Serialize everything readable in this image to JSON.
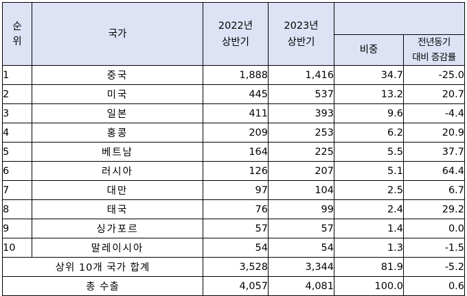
{
  "headers": {
    "rank": [
      "순",
      "위"
    ],
    "country": "국가",
    "y2022": [
      "2022년",
      "상반기"
    ],
    "y2023": [
      "2023년",
      "상반기"
    ],
    "share": "비중",
    "yoy": [
      "전년동기",
      "대비 증감률"
    ]
  },
  "rows": [
    {
      "rank": "1",
      "country": "중국",
      "y2022": "1,888",
      "y2023": "1,416",
      "share": "34.7",
      "yoy": "-25.0"
    },
    {
      "rank": "2",
      "country": "미국",
      "y2022": "445",
      "y2023": "537",
      "share": "13.2",
      "yoy": "20.7"
    },
    {
      "rank": "3",
      "country": "일본",
      "y2022": "411",
      "y2023": "393",
      "share": "9.6",
      "yoy": "-4.4"
    },
    {
      "rank": "4",
      "country": "홍콩",
      "y2022": "209",
      "y2023": "253",
      "share": "6.2",
      "yoy": "20.9"
    },
    {
      "rank": "5",
      "country": "베트남",
      "y2022": "164",
      "y2023": "225",
      "share": "5.5",
      "yoy": "37.7"
    },
    {
      "rank": "6",
      "country": "러시아",
      "y2022": "126",
      "y2023": "207",
      "share": "5.1",
      "yoy": "64.4"
    },
    {
      "rank": "7",
      "country": "대만",
      "y2022": "97",
      "y2023": "104",
      "share": "2.5",
      "yoy": "6.7"
    },
    {
      "rank": "8",
      "country": "태국",
      "y2022": "76",
      "y2023": "99",
      "share": "2.4",
      "yoy": "29.2"
    },
    {
      "rank": "9",
      "country": "싱가포르",
      "y2022": "57",
      "y2023": "57",
      "share": "1.4",
      "yoy": "0.0"
    },
    {
      "rank": "10",
      "country": "말레이시아",
      "y2022": "54",
      "y2023": "54",
      "share": "1.3",
      "yoy": "-1.5"
    }
  ],
  "subtotal": {
    "label": "상위 10개 국가 합계",
    "y2022": "3,528",
    "y2023": "3,344",
    "share": "81.9",
    "yoy": "-5.2"
  },
  "total": {
    "label": "총 수출",
    "y2022": "4,057",
    "y2023": "4,081",
    "share": "100.0",
    "yoy": "0.6"
  },
  "colors": {
    "header_bg": "#dde3f5",
    "border": "#000000"
  }
}
